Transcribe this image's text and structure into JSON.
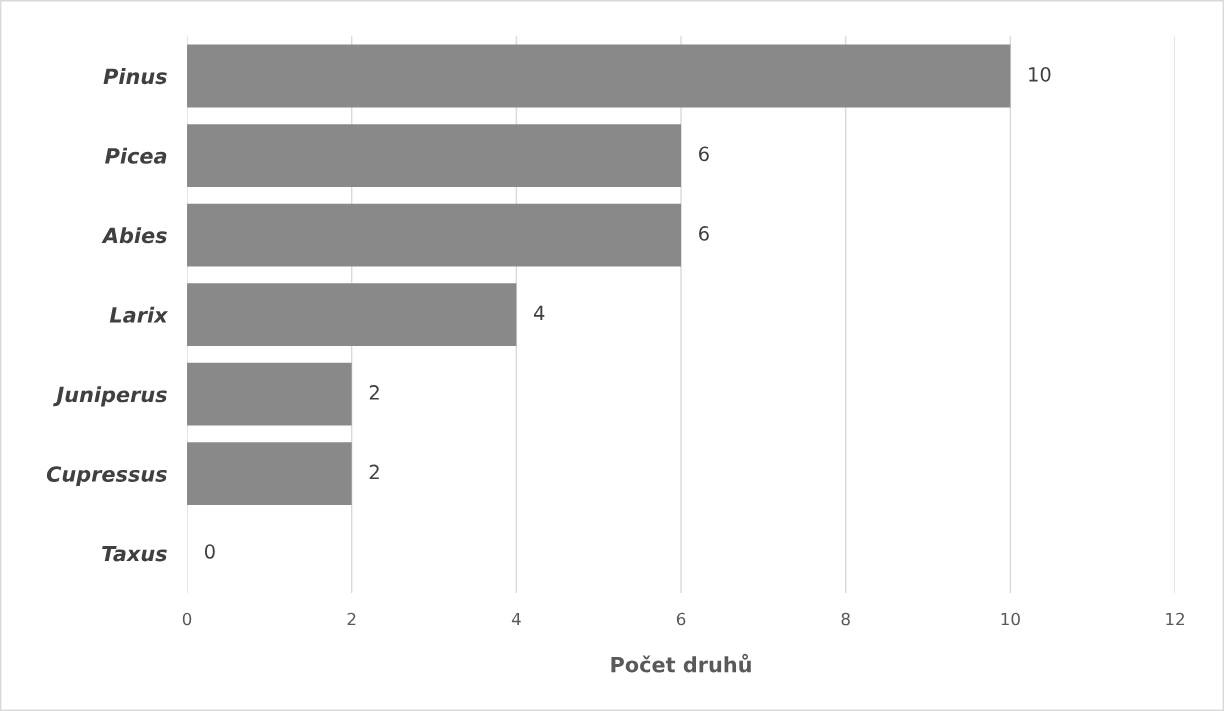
{
  "chart_data": {
    "type": "bar",
    "orientation": "horizontal",
    "xlabel": "Počet druhů",
    "categories": [
      "Pinus",
      "Picea",
      "Abies",
      "Larix",
      "Juniperus",
      "Cupressus",
      "Taxus"
    ],
    "values": [
      10,
      6,
      6,
      4,
      2,
      2,
      0
    ],
    "color": "#898989",
    "xlim": [
      0,
      12
    ],
    "xticks": [
      0,
      2,
      4,
      6,
      8,
      10,
      12
    ],
    "grid": "x",
    "data_labels": true
  }
}
